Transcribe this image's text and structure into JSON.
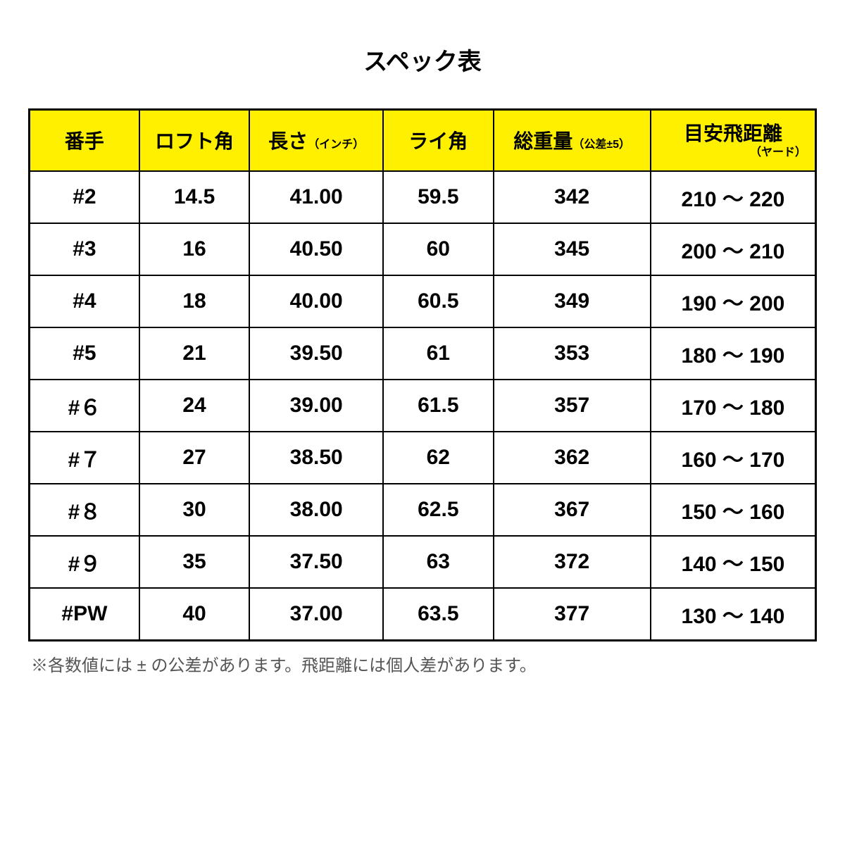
{
  "title": "スペック表",
  "headers": {
    "number": "番手",
    "loft": "ロフト角",
    "length_main": "長さ",
    "length_sub": "（インチ）",
    "lie": "ライ角",
    "weight_main": "総重量",
    "weight_sub": "（公差±5）",
    "distance_main": "目安飛距離",
    "distance_sub": "（ヤード）"
  },
  "rows": [
    {
      "number": "#2",
      "loft": "14.5",
      "length": "41.00",
      "lie": "59.5",
      "weight": "342",
      "distance": "210 ～ 220"
    },
    {
      "number": "#3",
      "loft": "16",
      "length": "40.50",
      "lie": "60",
      "weight": "345",
      "distance": "200 ～ 210"
    },
    {
      "number": "#4",
      "loft": "18",
      "length": "40.00",
      "lie": "60.5",
      "weight": "349",
      "distance": "190 ～ 200"
    },
    {
      "number": "#5",
      "loft": "21",
      "length": "39.50",
      "lie": "61",
      "weight": "353",
      "distance": "180 ～ 190"
    },
    {
      "number": "#６",
      "loft": "24",
      "length": "39.00",
      "lie": "61.5",
      "weight": "357",
      "distance": "170 ～ 180"
    },
    {
      "number": "#７",
      "loft": "27",
      "length": "38.50",
      "lie": "62",
      "weight": "362",
      "distance": "160 ～ 170"
    },
    {
      "number": "#８",
      "loft": "30",
      "length": "38.00",
      "lie": "62.5",
      "weight": "367",
      "distance": "150 ～ 160"
    },
    {
      "number": "#９",
      "loft": "35",
      "length": "37.50",
      "lie": "63",
      "weight": "372",
      "distance": "140 ～ 150"
    },
    {
      "number": "#PW",
      "loft": "40",
      "length": "37.00",
      "lie": "63.5",
      "weight": "377",
      "distance": "130 ～ 140"
    }
  ],
  "footnote": "※各数値には ± の公差があります。飛距離には個人差があります。",
  "styling": {
    "header_bg": "#fff000",
    "border_color": "#000000",
    "text_color": "#000000",
    "footnote_color": "#555555",
    "background_color": "#ffffff",
    "title_fontsize": 34,
    "header_fontsize": 28,
    "header_sub_fontsize": 16,
    "cell_fontsize": 30,
    "footnote_fontsize": 24
  }
}
